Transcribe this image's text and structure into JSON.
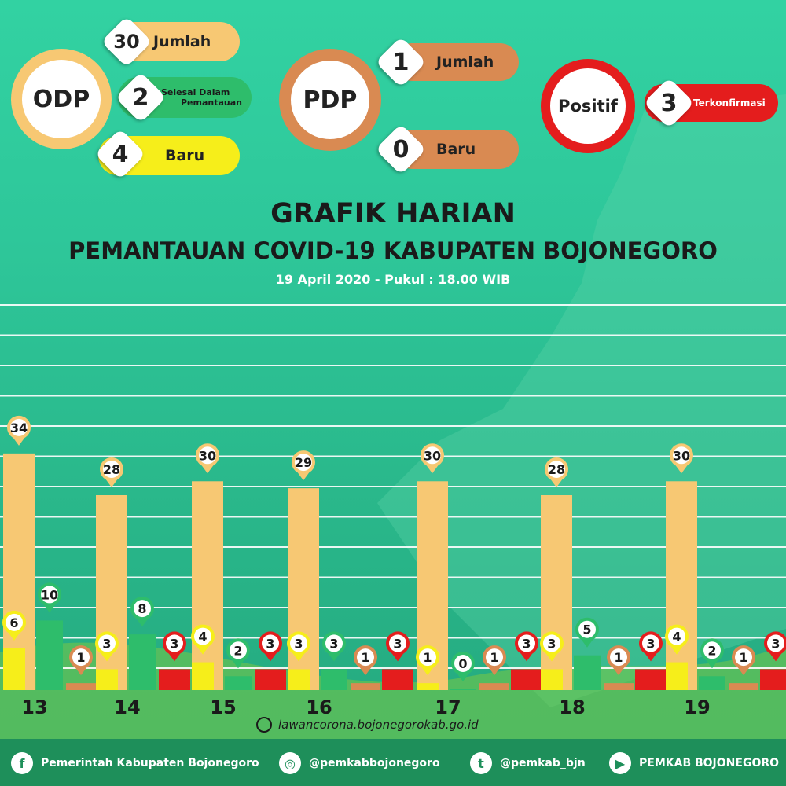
{
  "odp": {
    "label": "ODP",
    "jumlah_value": "30",
    "jumlah_label": "Jumlah",
    "selesai_value": "2",
    "selesai_label_1": "Selesai Dalam",
    "selesai_label_2": "Pemantauan",
    "baru_value": "4",
    "baru_label": "Baru"
  },
  "pdp": {
    "label": "PDP",
    "jumlah_value": "1",
    "jumlah_label": "Jumlah",
    "baru_value": "0",
    "baru_label": "Baru"
  },
  "positif": {
    "label": "Positif",
    "value": "3",
    "value_label": "Terkonfirmasi"
  },
  "title_line1": "GRAFIK HARIAN",
  "title_line2": "PEMANTAUAN COVID-19 KABUPATEN BOJONEGORO",
  "subtitle": "19 April 2020 - Pukul : 18.00 WIB",
  "website": "lawancorona.bojonegorokab.go.id",
  "month_label": "April",
  "footer": {
    "facebook": "Pemerintah Kabupaten Bojonegoro",
    "instagram": "@pemkabbojonegoro",
    "twitter": "@pemkab_bjn",
    "youtube": "PEMKAB BOJONEGORO"
  },
  "colors": {
    "odp_jumlah": "#f7c873",
    "odp_selesai": "#2ebd6b",
    "odp_baru": "#f6ee1a",
    "pdp": "#d98a52",
    "positif": "#e41d1d"
  },
  "chart_data": {
    "type": "bar",
    "categories": [
      "13",
      "14",
      "15",
      "16",
      "17",
      "18",
      "19"
    ],
    "ylim": [
      0,
      56
    ],
    "series": [
      {
        "name": "",
        "color": "#f7c873",
        "values": [
          34,
          28,
          30,
          29,
          30,
          28,
          30
        ]
      },
      {
        "name": "",
        "color": "#f6ee1a",
        "values": [
          6,
          3,
          4,
          3,
          1,
          3,
          4
        ]
      },
      {
        "name": "",
        "color": "#2ebd6b",
        "values": [
          10,
          8,
          2,
          3,
          0,
          5,
          2
        ]
      },
      {
        "name": "",
        "color": "#d98a52",
        "values": [
          1,
          null,
          null,
          1,
          1,
          1,
          1
        ]
      },
      {
        "name": "",
        "color": "#e41d1d",
        "values": [
          null,
          3,
          3,
          3,
          3,
          3,
          3
        ]
      }
    ]
  }
}
